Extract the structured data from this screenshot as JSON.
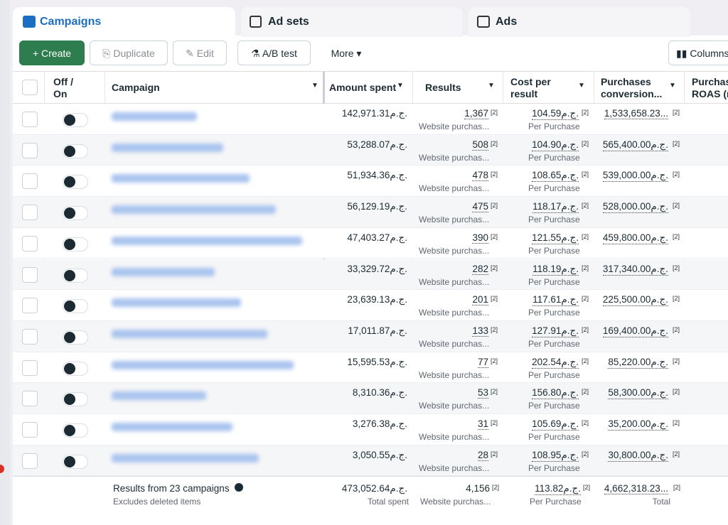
{
  "tabs": [
    "Campaigns",
    "Ad sets",
    "Ads"
  ],
  "toolbar": {
    "create": "Create",
    "duplicate": "Duplicate",
    "edit": "Edit",
    "ab_test": "A/B test",
    "more": "More",
    "columns": "Columns"
  },
  "table": {
    "headers": {
      "toggle": "Off / On",
      "campaign": "Campaign",
      "amount": "Amount spent",
      "results": "Results",
      "cost": "Cost per result",
      "conversion": "Purchases conversion...",
      "roas": "Purchas ROAS (r"
    },
    "marker": "[2]",
    "results_sub": "Website purchas...",
    "cost_sub": "Per Purchase",
    "rows": [
      [
        "142,971.31ج.م.",
        "1,367",
        "104.59ج.م.",
        "1,533,658.23..."
      ],
      [
        "53,288.07ج.م.",
        "508",
        "104.90ج.م.",
        "565,400.00ج.م."
      ],
      [
        "51,934.36ج.م.",
        "478",
        "108.65ج.م.",
        "539,000.00ج.م."
      ],
      [
        "56,129.19ج.م.",
        "475",
        "118.17ج.م.",
        "528,000.00ج.م."
      ],
      [
        "47,403.27ج.م.",
        "390",
        "121.55ج.م.",
        "459,800.00ج.م."
      ],
      [
        "33,329.72ج.م.",
        "282",
        "118.19ج.م.",
        "317,340.00ج.م."
      ],
      [
        "23,639.13ج.م.",
        "201",
        "117.61ج.م.",
        "225,500.00ج.م."
      ],
      [
        "17,011.87ج.م.",
        "133",
        "127.91ج.م.",
        "169,400.00ج.م."
      ],
      [
        "15,595.53ج.م.",
        "77",
        "202.54ج.م.",
        "85,220.00ج.م."
      ],
      [
        "8,310.36ج.م.",
        "53",
        "156.80ج.م.",
        "58,300.00ج.م."
      ],
      [
        "3,276.38ج.م.",
        "31",
        "105.69ج.م.",
        "35,200.00ج.م."
      ],
      [
        "3,050.55ج.م.",
        "28",
        "108.95ج.م.",
        "30,800.00ج.م."
      ]
    ],
    "footer": {
      "summary": "Results from 23 campaigns",
      "note": "Excludes deleted items",
      "amount": "473,052.64ج.م.",
      "amount_sub": "Total spent",
      "results": "4,156",
      "results_sub": "Website purchas...",
      "cost": "113.82ج.م.",
      "cost_sub": "Per Purchase",
      "conversion": "4,662,318.23...",
      "conversion_sub": "Total"
    }
  }
}
